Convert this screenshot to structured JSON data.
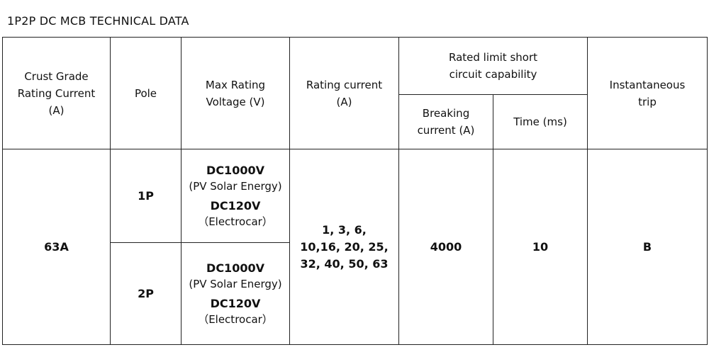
{
  "title": "1P2P DC MCB TECHNICAL DATA",
  "table": {
    "header": {
      "crust_grade": [
        "Crust Grade",
        "Rating Current",
        "(A)"
      ],
      "pole": "Pole",
      "max_voltage": [
        "Max Rating",
        "Voltage (V)"
      ],
      "rating_current": [
        "Rating current",
        "(A)"
      ],
      "short_circuit": [
        "Rated limit short",
        "circuit capability"
      ],
      "breaking_current": [
        "Breaking",
        "current (A)"
      ],
      "time": "Time (ms)",
      "instantaneous_trip": [
        "Instantaneous",
        "trip"
      ]
    },
    "rows": [
      {
        "crust_grade": "63A",
        "pole": "1P",
        "voltage": [
          "DC1000V",
          "(PV Solar Energy)",
          "DC120V",
          "（Electrocar）"
        ],
        "rating_current": [
          "1, 3, 6,",
          "10,16, 20, 25,",
          "32, 40, 50, 63"
        ],
        "breaking_current": "4000",
        "time": "10",
        "trip": "B"
      },
      {
        "pole": "2P",
        "voltage": [
          "DC1000V",
          "(PV Solar Energy)",
          "DC120V",
          "（Electrocar）"
        ]
      }
    ]
  }
}
